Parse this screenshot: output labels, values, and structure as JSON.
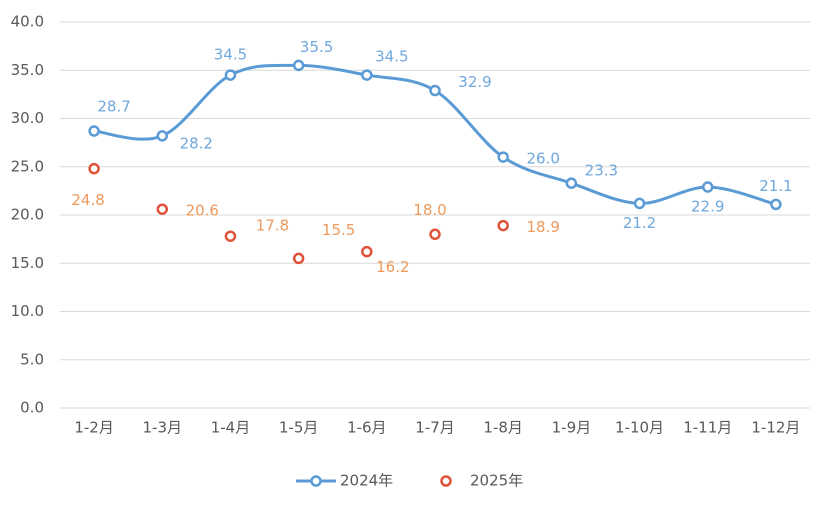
{
  "chart_data": {
    "type": "line",
    "categories": [
      "1-2月",
      "1-3月",
      "1-4月",
      "1-5月",
      "1-6月",
      "1-7月",
      "1-8月",
      "1-9月",
      "1-10月",
      "1-11月",
      "1-12月"
    ],
    "series": [
      {
        "name": "2024年",
        "color": "#5b9bd5",
        "line": true,
        "values": [
          28.7,
          28.2,
          34.5,
          35.5,
          34.5,
          32.9,
          26.0,
          23.3,
          21.2,
          22.9,
          21.1
        ],
        "value_labels": [
          "28.7",
          "28.2",
          "34.5",
          "35.5",
          "34.5",
          "32.9",
          "26.0",
          "23.3",
          "21.2",
          "22.9",
          "21.1"
        ]
      },
      {
        "name": "2025年",
        "color": "#e0533a",
        "line": false,
        "values": [
          24.8,
          20.6,
          17.8,
          15.5,
          16.2,
          18.0,
          18.9,
          null,
          null,
          null,
          null
        ],
        "value_labels": [
          "24.8",
          "20.6",
          "17.8",
          "15.5",
          "16.2",
          "18.0",
          "18.9",
          null,
          null,
          null,
          null
        ]
      }
    ],
    "ylim": [
      0,
      40
    ],
    "yticks": [
      {
        "value": 0,
        "label": "0.0"
      },
      {
        "value": 5,
        "label": "5.0"
      },
      {
        "value": 10,
        "label": "10.0"
      },
      {
        "value": 15,
        "label": "15.0"
      },
      {
        "value": 20,
        "label": "20.0"
      },
      {
        "value": 25,
        "label": "25.0"
      },
      {
        "value": 30,
        "label": "30.0"
      },
      {
        "value": 35,
        "label": "35.0"
      },
      {
        "value": 40,
        "label": "40.0"
      }
    ],
    "grid": true,
    "legend": "bottom"
  }
}
